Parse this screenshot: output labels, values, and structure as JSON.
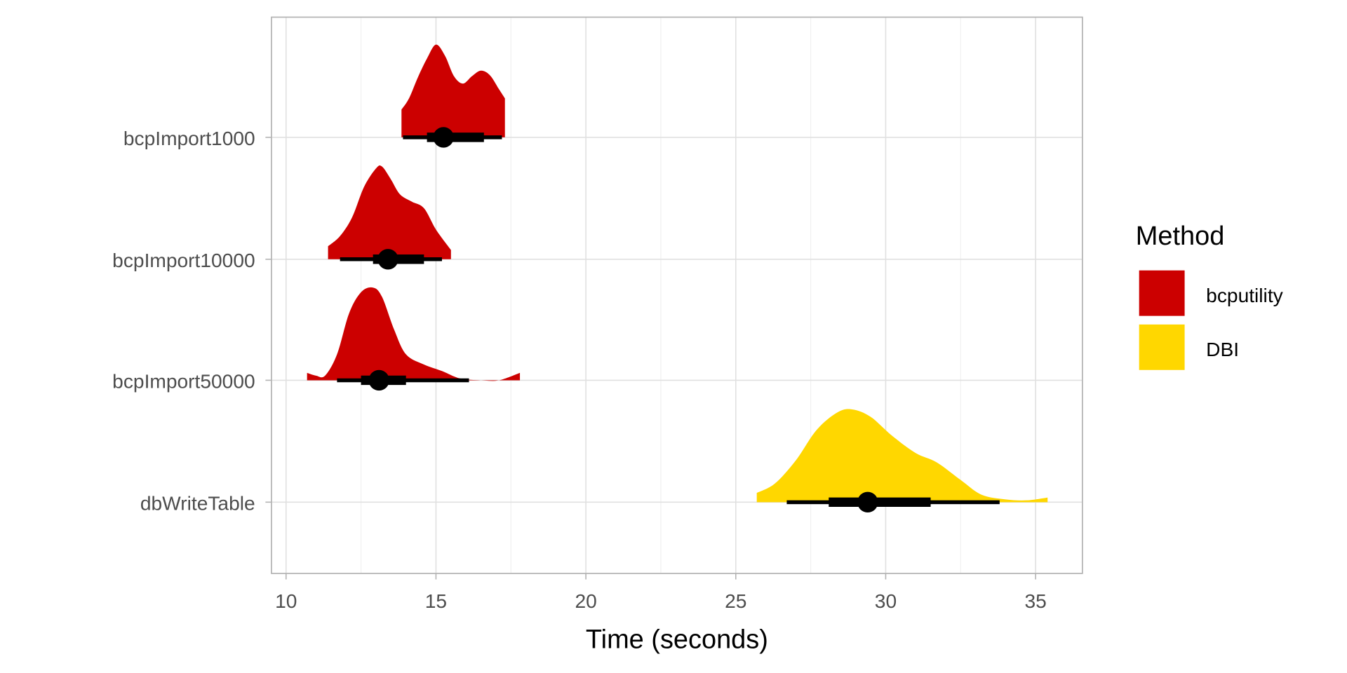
{
  "chart_data": {
    "type": "halfeye",
    "title": "",
    "xlabel": "Time (seconds)",
    "ylabel": "",
    "xlim": [
      9.5,
      36.5
    ],
    "x_ticks": [
      10,
      15,
      20,
      25,
      30,
      35
    ],
    "x_tick_labels": [
      "10",
      "15",
      "20",
      "25",
      "30",
      "35"
    ],
    "categories": [
      "bcpImport1000",
      "bcpImport10000",
      "bcpImport50000",
      "dbWriteTable"
    ],
    "grid": true,
    "legend": {
      "title": "Method",
      "position": "right",
      "entries": [
        {
          "label": "bcputility",
          "color": "#CC0000"
        },
        {
          "label": "DBI",
          "color": "#FFD700"
        }
      ]
    },
    "series": [
      {
        "name": "bcpImport1000",
        "method": "bcputility",
        "color": "#CC0000",
        "median": 15.25,
        "interval_66": [
          14.7,
          16.6
        ],
        "interval_95": [
          13.9,
          17.2
        ],
        "density": [
          [
            13.85,
            0.3
          ],
          [
            14.1,
            0.42
          ],
          [
            14.4,
            0.65
          ],
          [
            14.7,
            0.85
          ],
          [
            15.0,
            1.0
          ],
          [
            15.3,
            0.88
          ],
          [
            15.6,
            0.66
          ],
          [
            15.9,
            0.58
          ],
          [
            16.2,
            0.66
          ],
          [
            16.5,
            0.72
          ],
          [
            16.8,
            0.67
          ],
          [
            17.1,
            0.52
          ],
          [
            17.3,
            0.42
          ]
        ]
      },
      {
        "name": "bcpImport10000",
        "method": "bcputility",
        "color": "#CC0000",
        "median": 13.4,
        "interval_66": [
          12.9,
          14.6
        ],
        "interval_95": [
          11.8,
          15.2
        ],
        "density": [
          [
            11.4,
            0.14
          ],
          [
            11.8,
            0.25
          ],
          [
            12.2,
            0.45
          ],
          [
            12.6,
            0.78
          ],
          [
            13.0,
            0.98
          ],
          [
            13.2,
            1.0
          ],
          [
            13.5,
            0.86
          ],
          [
            13.8,
            0.7
          ],
          [
            14.2,
            0.62
          ],
          [
            14.6,
            0.55
          ],
          [
            15.0,
            0.32
          ],
          [
            15.5,
            0.1
          ]
        ]
      },
      {
        "name": "bcpImport50000",
        "method": "bcputility",
        "color": "#CC0000",
        "median": 13.1,
        "interval_66": [
          12.5,
          14.0
        ],
        "interval_95": [
          11.7,
          16.1
        ],
        "density": [
          [
            10.7,
            0.08
          ],
          [
            11.0,
            0.05
          ],
          [
            11.3,
            0.05
          ],
          [
            11.7,
            0.28
          ],
          [
            12.1,
            0.72
          ],
          [
            12.5,
            0.95
          ],
          [
            12.9,
            1.0
          ],
          [
            13.2,
            0.9
          ],
          [
            13.6,
            0.55
          ],
          [
            14.0,
            0.28
          ],
          [
            14.6,
            0.17
          ],
          [
            15.2,
            0.1
          ],
          [
            15.8,
            0.02
          ],
          [
            16.5,
            0.0
          ],
          [
            17.1,
            0.0
          ],
          [
            17.8,
            0.08
          ]
        ]
      },
      {
        "name": "dbWriteTable",
        "method": "DBI",
        "color": "#FFD700",
        "median": 29.4,
        "interval_66": [
          28.1,
          31.5
        ],
        "interval_95": [
          26.7,
          33.8
        ],
        "density": [
          [
            25.7,
            0.1
          ],
          [
            26.3,
            0.2
          ],
          [
            27.0,
            0.45
          ],
          [
            27.7,
            0.78
          ],
          [
            28.4,
            0.97
          ],
          [
            28.9,
            1.0
          ],
          [
            29.5,
            0.92
          ],
          [
            30.2,
            0.72
          ],
          [
            31.0,
            0.53
          ],
          [
            31.7,
            0.43
          ],
          [
            32.5,
            0.24
          ],
          [
            33.2,
            0.08
          ],
          [
            34.0,
            0.03
          ],
          [
            34.7,
            0.02
          ],
          [
            35.4,
            0.05
          ]
        ]
      }
    ]
  },
  "axes": {
    "x_title": "Time (seconds)",
    "x_ticks": [
      "10",
      "15",
      "20",
      "25",
      "30",
      "35"
    ],
    "y_ticks": [
      "bcpImport1000",
      "bcpImport10000",
      "bcpImport50000",
      "dbWriteTable"
    ]
  },
  "legend": {
    "title": "Method",
    "items": [
      {
        "label": "bcputility",
        "color": "#CC0000"
      },
      {
        "label": "DBI",
        "color": "#FFD700"
      }
    ]
  }
}
